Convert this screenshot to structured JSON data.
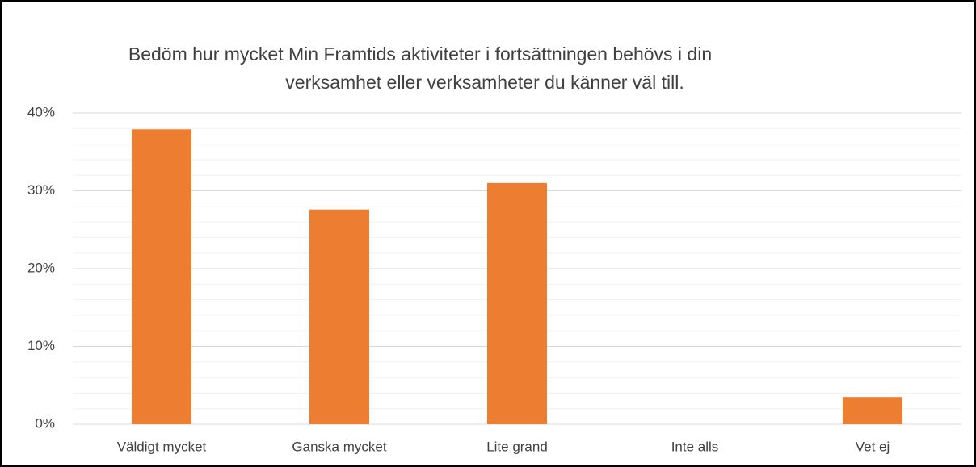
{
  "chart_data": {
    "type": "bar",
    "title": [
      "Bedöm hur mycket Min Framtids aktiviteter i fortsättningen behövs i din",
      "verksamhet eller verksamheter du känner väl till."
    ],
    "categories": [
      "Väldigt mycket",
      "Ganska mycket",
      "Lite grand",
      "Inte alls",
      "Vet ej"
    ],
    "values": [
      37.9,
      27.6,
      31.0,
      0,
      3.5
    ],
    "color": "#ed7d31",
    "ylim": [
      0,
      40
    ],
    "yticks": [
      {
        "value": 0,
        "label": "0%"
      },
      {
        "value": 10,
        "label": "10%"
      },
      {
        "value": 20,
        "label": "20%"
      },
      {
        "value": 30,
        "label": "30%"
      },
      {
        "value": 40,
        "label": "40%"
      }
    ],
    "minor_yticks": [
      2,
      4,
      6,
      8,
      12,
      14,
      16,
      18,
      22,
      24,
      26,
      28,
      32,
      34,
      36,
      38
    ],
    "grid": true
  }
}
